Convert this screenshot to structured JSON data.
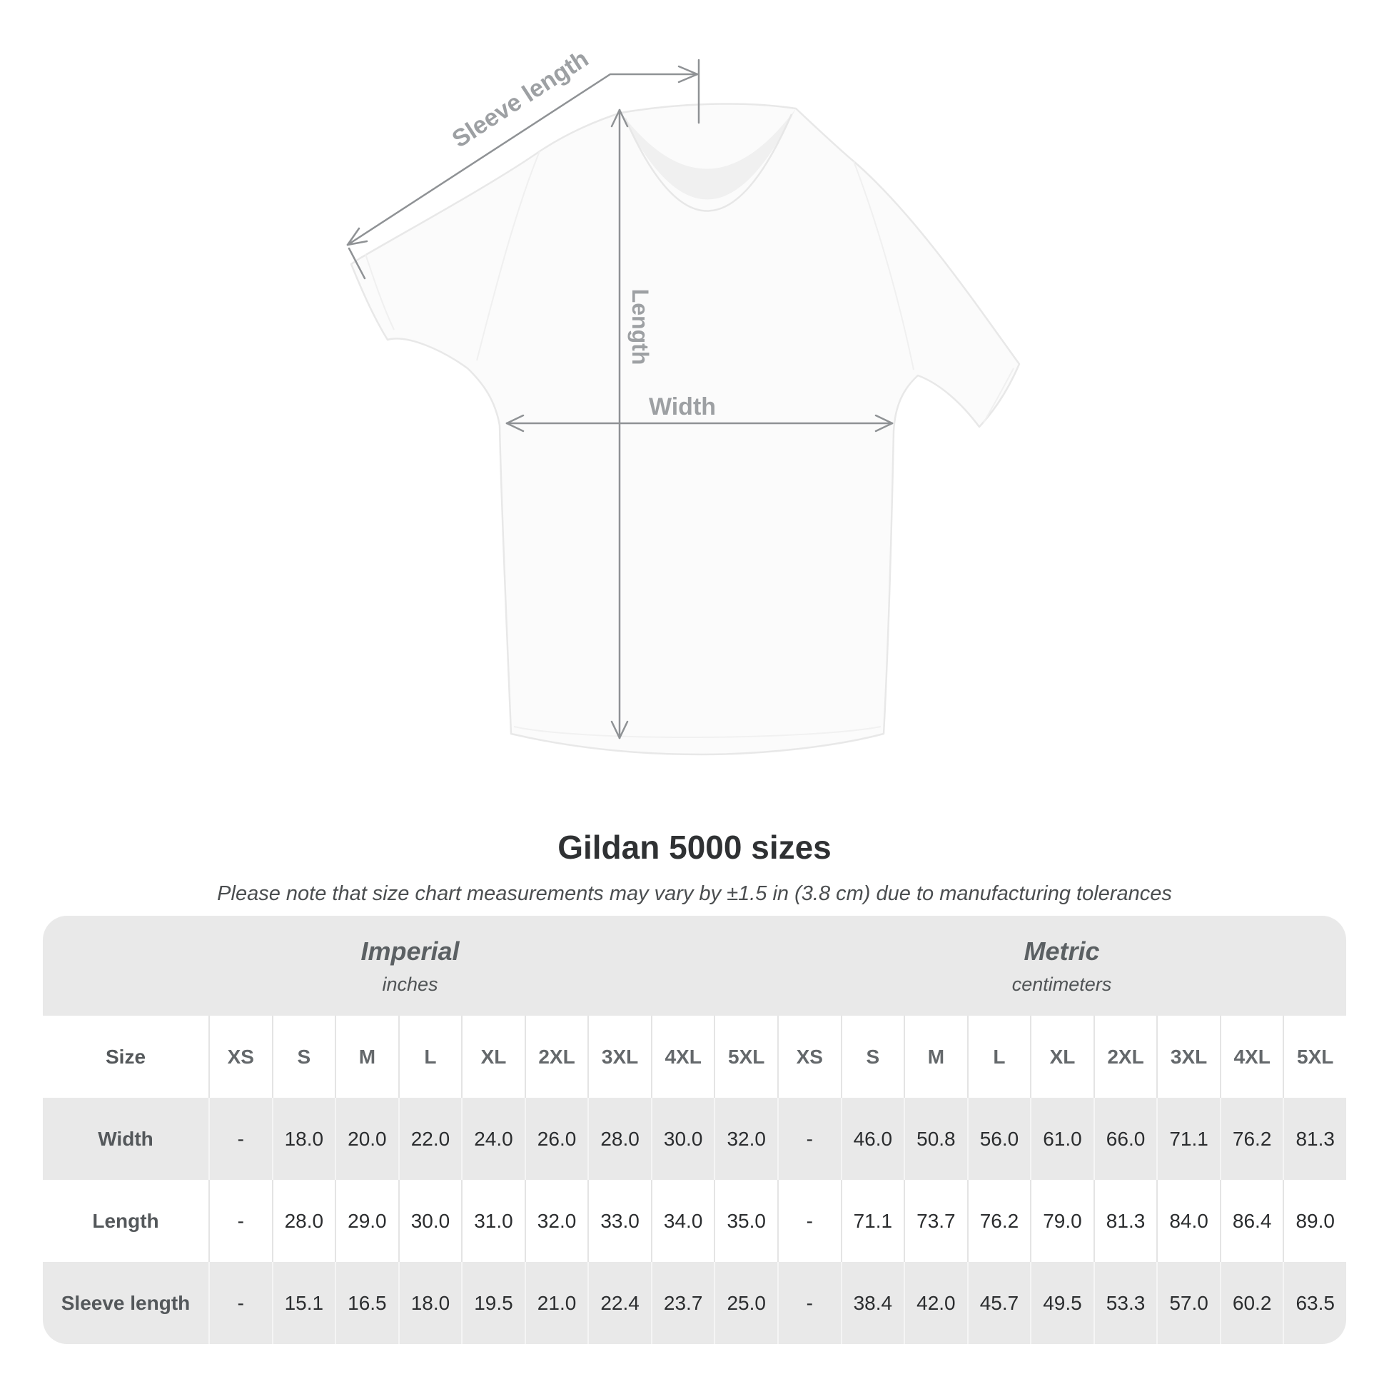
{
  "diagram": {
    "labels": {
      "sleeve_length": "Sleeve length",
      "length": "Length",
      "width": "Width"
    }
  },
  "title": "Gildan 5000 sizes",
  "subtitle": "Please note that size chart measurements may vary by ±1.5 in (3.8 cm) due to manufacturing tolerances",
  "table": {
    "size_header": "Size",
    "unit_groups": [
      {
        "name": "Imperial",
        "unit": "inches"
      },
      {
        "name": "Metric",
        "unit": "centimeters"
      }
    ],
    "sizes": [
      "XS",
      "S",
      "M",
      "L",
      "XL",
      "2XL",
      "3XL",
      "4XL",
      "5XL"
    ],
    "rows": [
      {
        "label": "Width",
        "imperial": [
          "-",
          "18.0",
          "20.0",
          "22.0",
          "24.0",
          "26.0",
          "28.0",
          "30.0",
          "32.0"
        ],
        "metric": [
          "-",
          "46.0",
          "50.8",
          "56.0",
          "61.0",
          "66.0",
          "71.1",
          "76.2",
          "81.3"
        ]
      },
      {
        "label": "Length",
        "imperial": [
          "-",
          "28.0",
          "29.0",
          "30.0",
          "31.0",
          "32.0",
          "33.0",
          "34.0",
          "35.0"
        ],
        "metric": [
          "-",
          "71.1",
          "73.7",
          "76.2",
          "79.0",
          "81.3",
          "84.0",
          "86.4",
          "89.0"
        ]
      },
      {
        "label": "Sleeve length",
        "imperial": [
          "-",
          "15.1",
          "16.5",
          "18.0",
          "19.5",
          "21.0",
          "22.4",
          "23.7",
          "25.0"
        ],
        "metric": [
          "-",
          "38.4",
          "42.0",
          "45.7",
          "49.5",
          "53.3",
          "57.0",
          "60.2",
          "63.5"
        ]
      }
    ]
  },
  "chart_data": {
    "type": "table",
    "title": "Gildan 5000 sizes",
    "note": "Measurements may vary by ±1.5 in (3.8 cm) due to manufacturing tolerances",
    "groups": [
      {
        "name": "Imperial",
        "unit": "inches",
        "sizes": [
          "XS",
          "S",
          "M",
          "L",
          "XL",
          "2XL",
          "3XL",
          "4XL",
          "5XL"
        ]
      },
      {
        "name": "Metric",
        "unit": "centimeters",
        "sizes": [
          "XS",
          "S",
          "M",
          "L",
          "XL",
          "2XL",
          "3XL",
          "4XL",
          "5XL"
        ]
      }
    ],
    "rows": [
      {
        "measurement": "Width",
        "imperial_in": [
          null,
          18.0,
          20.0,
          22.0,
          24.0,
          26.0,
          28.0,
          30.0,
          32.0
        ],
        "metric_cm": [
          null,
          46.0,
          50.8,
          56.0,
          61.0,
          66.0,
          71.1,
          76.2,
          81.3
        ]
      },
      {
        "measurement": "Length",
        "imperial_in": [
          null,
          28.0,
          29.0,
          30.0,
          31.0,
          32.0,
          33.0,
          34.0,
          35.0
        ],
        "metric_cm": [
          null,
          71.1,
          73.7,
          76.2,
          79.0,
          81.3,
          84.0,
          86.4,
          89.0
        ]
      },
      {
        "measurement": "Sleeve length",
        "imperial_in": [
          null,
          15.1,
          16.5,
          18.0,
          19.5,
          21.0,
          22.4,
          23.7,
          25.0
        ],
        "metric_cm": [
          null,
          38.4,
          42.0,
          45.7,
          49.5,
          53.3,
          57.0,
          60.2,
          63.5
        ]
      }
    ]
  },
  "colors": {
    "background": "#ffffff",
    "table_band": "#e9e9e9",
    "row_alt": "#e9e9e9",
    "separator_on_white": "#e4e4e4",
    "separator_on_gray": "#f5f5f5",
    "diagram_line": "#8f9295",
    "diagram_label": "#9da0a3",
    "title_text": "#2f3133",
    "value_text": "#2b2d2f",
    "shirt_fill": "#fbfbfb",
    "shirt_outline": "#e8e8e8"
  }
}
